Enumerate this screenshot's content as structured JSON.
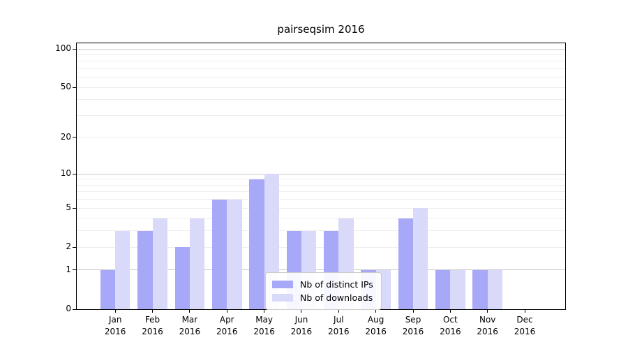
{
  "figure": {
    "title": "pairseqsim 2016"
  },
  "chart_data": {
    "type": "bar",
    "title": "pairseqsim 2016",
    "categories": [
      "Jan",
      "Feb",
      "Mar",
      "Apr",
      "May",
      "Jun",
      "Jul",
      "Aug",
      "Sep",
      "Oct",
      "Nov",
      "Dec"
    ],
    "category_year": "2016",
    "series": [
      {
        "name": "Nb of distinct IPs",
        "color": "#a8a8f8",
        "values": [
          1,
          3,
          2,
          6,
          9,
          3,
          3,
          1,
          4,
          1,
          1,
          0
        ]
      },
      {
        "name": "Nb of downloads",
        "color": "#d9d9f9",
        "values": [
          3,
          4,
          4,
          6,
          10,
          3,
          4,
          1,
          5,
          1,
          1,
          0
        ]
      }
    ],
    "xlabel": "",
    "ylabel": "",
    "y_axis": {
      "scale": "log1p",
      "tick_labels": [
        0,
        1,
        2,
        5,
        10,
        20,
        50,
        100
      ],
      "major_gridlines": [
        1,
        10,
        100
      ],
      "minor_gridlines": [
        2,
        3,
        4,
        5,
        6,
        7,
        8,
        9,
        20,
        30,
        40,
        50,
        60,
        70,
        80,
        90
      ],
      "ylim": [
        0,
        110
      ]
    },
    "legend": {
      "position": "inside-bottom-center",
      "entries": [
        "Nb of distinct IPs",
        "Nb of downloads"
      ]
    },
    "colors": {
      "bar_distinct_ips": "#a8a8f8",
      "bar_downloads": "#d9d9f9",
      "major_grid": "#c9c9c9",
      "minor_grid": "#ededed",
      "axis": "#000000",
      "background": "#ffffff"
    },
    "grid": "on"
  }
}
